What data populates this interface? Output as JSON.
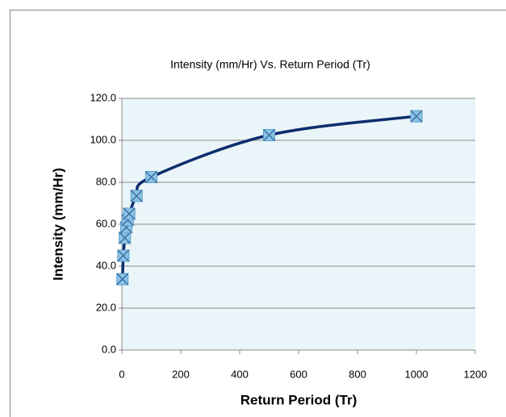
{
  "chart_data": {
    "type": "scatter",
    "title": "Intensity (mm/Hr) Vs. Return Period (Tr)",
    "x_label": "Return Period (Tr)",
    "y_label": "Intensity (mm/Hr)",
    "x": [
      2,
      5,
      10,
      15,
      20,
      25,
      50,
      100,
      500,
      1000
    ],
    "series": [
      {
        "name": "Intensity",
        "color": "#0d2d6e",
        "marker_color": "#8cc4e6",
        "values": [
          33.8,
          45.0,
          53.5,
          58.5,
          62.0,
          65.0,
          73.5,
          82.5,
          102.5,
          111.5
        ]
      }
    ],
    "xlim": [
      0,
      1200
    ],
    "xticks": [
      0,
      200,
      400,
      600,
      800,
      1000,
      1200
    ],
    "ylim": [
      0,
      120
    ],
    "yticks": [
      {
        "value": 0,
        "label": "0.0"
      },
      {
        "value": 20,
        "label": "20.0"
      },
      {
        "value": 40,
        "label": "40.0"
      },
      {
        "value": 60,
        "label": "60.0"
      },
      {
        "value": 80,
        "label": "80.0"
      },
      {
        "value": 100,
        "label": "100.0"
      },
      {
        "value": 120,
        "label": "120.0"
      }
    ],
    "grid": true,
    "smooth": true
  }
}
